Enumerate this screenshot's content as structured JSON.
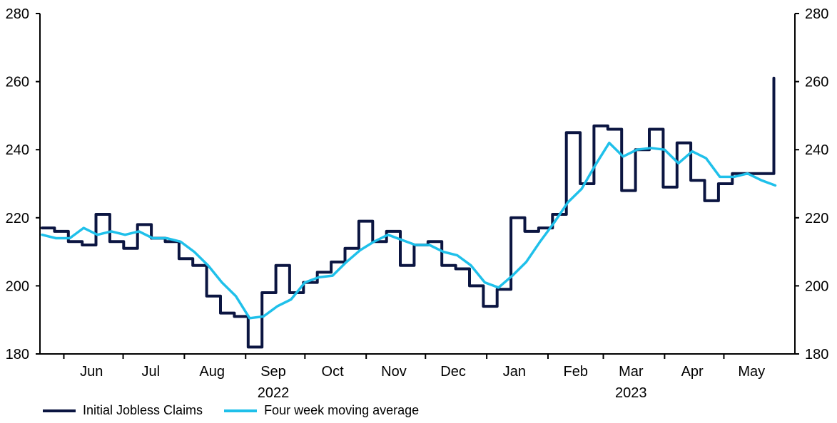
{
  "colors": {
    "claims": "#0b1541",
    "average": "#1fc0ea",
    "axis": "#000000"
  },
  "legend": {
    "claims_label": "Initial Jobless Claims",
    "average_label": "Four week moving average"
  },
  "chart_data": {
    "type": "line",
    "title": "",
    "xlabel": "",
    "ylabel": "",
    "ylim": [
      180,
      280
    ],
    "yticks": [
      180,
      200,
      220,
      240,
      260,
      280
    ],
    "y_axis_sides": "left and right (mirrored)",
    "grid": false,
    "legend_position": "bottom-left",
    "x_date_range": [
      "2022-05-21",
      "2023-05-27"
    ],
    "x_month_labels": [
      {
        "label": "Jun",
        "date": "2022-06-15"
      },
      {
        "label": "Jul",
        "date": "2022-07-15"
      },
      {
        "label": "Aug",
        "date": "2022-08-15"
      },
      {
        "label": "Sep",
        "date": "2022-09-15"
      },
      {
        "label": "Oct",
        "date": "2022-10-15"
      },
      {
        "label": "Nov",
        "date": "2022-11-15"
      },
      {
        "label": "Dec",
        "date": "2022-12-15"
      },
      {
        "label": "Jan",
        "date": "2023-01-15"
      },
      {
        "label": "Feb",
        "date": "2023-02-15"
      },
      {
        "label": "Mar",
        "date": "2023-03-15"
      },
      {
        "label": "Apr",
        "date": "2023-04-15"
      },
      {
        "label": "May",
        "date": "2023-05-15"
      }
    ],
    "x_month_boundaries": [
      "2022-06-01",
      "2022-07-01",
      "2022-08-01",
      "2022-09-01",
      "2022-10-01",
      "2022-11-01",
      "2022-12-01",
      "2023-01-01",
      "2023-02-01",
      "2023-03-01",
      "2023-04-01",
      "2023-05-01"
    ],
    "x_year_labels": [
      {
        "label": "2022",
        "date": "2022-09-15"
      },
      {
        "label": "2023",
        "date": "2023-03-15"
      }
    ],
    "series": [
      {
        "name": "Initial Jobless Claims",
        "x": [
          "2022-05-21",
          "2022-05-28",
          "2022-06-04",
          "2022-06-11",
          "2022-06-18",
          "2022-06-25",
          "2022-07-02",
          "2022-07-09",
          "2022-07-16",
          "2022-07-23",
          "2022-07-30",
          "2022-08-06",
          "2022-08-13",
          "2022-08-20",
          "2022-08-27",
          "2022-09-03",
          "2022-09-10",
          "2022-09-17",
          "2022-09-24",
          "2022-10-01",
          "2022-10-08",
          "2022-10-15",
          "2022-10-22",
          "2022-10-29",
          "2022-11-05",
          "2022-11-12",
          "2022-11-19",
          "2022-11-26",
          "2022-12-03",
          "2022-12-10",
          "2022-12-17",
          "2022-12-24",
          "2022-12-31",
          "2023-01-07",
          "2023-01-14",
          "2023-01-21",
          "2023-01-28",
          "2023-02-04",
          "2023-02-11",
          "2023-02-18",
          "2023-02-25",
          "2023-03-04",
          "2023-03-11",
          "2023-03-18",
          "2023-03-25",
          "2023-04-01",
          "2023-04-08",
          "2023-04-15",
          "2023-04-22",
          "2023-04-29",
          "2023-05-06",
          "2023-05-13",
          "2023-05-20",
          "2023-05-27"
        ],
        "values": [
          217,
          216,
          213,
          212,
          221,
          213,
          211,
          218,
          214,
          213,
          208,
          206,
          197,
          192,
          191,
          182,
          198,
          206,
          198,
          201,
          204,
          207,
          211,
          219,
          213,
          216,
          206,
          212,
          213,
          206,
          205,
          200,
          194,
          199,
          220,
          216,
          217,
          221,
          245,
          230,
          247,
          246,
          228,
          240,
          246,
          229,
          242,
          231,
          225,
          230,
          233,
          233,
          233,
          261
        ],
        "style": "step"
      },
      {
        "name": "Four week moving average",
        "x": [
          "2022-05-21",
          "2022-05-28",
          "2022-06-04",
          "2022-06-11",
          "2022-06-18",
          "2022-06-25",
          "2022-07-02",
          "2022-07-09",
          "2022-07-16",
          "2022-07-23",
          "2022-07-30",
          "2022-08-06",
          "2022-08-13",
          "2022-08-20",
          "2022-08-27",
          "2022-09-03",
          "2022-09-10",
          "2022-09-17",
          "2022-09-24",
          "2022-10-01",
          "2022-10-08",
          "2022-10-15",
          "2022-10-22",
          "2022-10-29",
          "2022-11-05",
          "2022-11-12",
          "2022-11-19",
          "2022-11-26",
          "2022-12-03",
          "2022-12-10",
          "2022-12-17",
          "2022-12-24",
          "2022-12-31",
          "2023-01-07",
          "2023-01-14",
          "2023-01-21",
          "2023-01-28",
          "2023-02-04",
          "2023-02-11",
          "2023-02-18",
          "2023-02-25",
          "2023-03-04",
          "2023-03-11",
          "2023-03-18",
          "2023-03-25",
          "2023-04-01",
          "2023-04-08",
          "2023-04-15",
          "2023-04-22",
          "2023-04-29",
          "2023-05-06",
          "2023-05-13",
          "2023-05-20",
          "2023-05-27"
        ],
        "values": [
          215,
          214,
          214,
          217,
          215,
          216,
          215,
          216,
          214,
          214,
          213,
          210,
          206,
          201,
          197,
          190.5,
          191,
          194,
          196,
          201,
          202.5,
          203,
          207,
          210.5,
          213,
          215,
          213.5,
          212,
          212,
          210,
          209,
          206,
          201,
          199.5,
          203,
          207,
          213,
          218.5,
          224.5,
          228.5,
          235.5,
          242,
          238,
          240,
          240.5,
          240,
          236,
          239.5,
          237.5,
          232,
          232,
          233,
          231,
          229.5
        ]
      }
    ]
  }
}
